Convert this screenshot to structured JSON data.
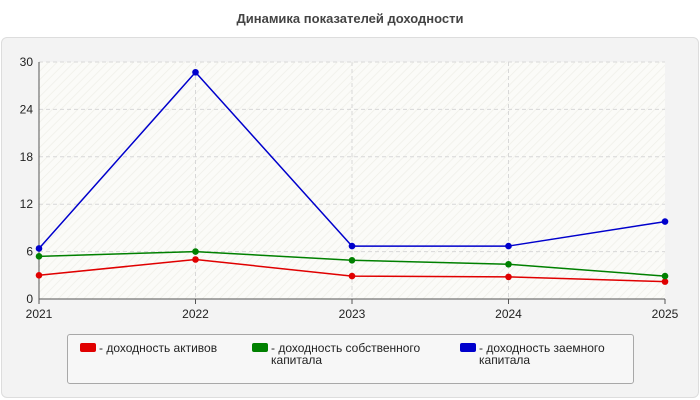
{
  "chart_data": {
    "type": "line",
    "title": "Динамика показателей доходности",
    "x": [
      "2021",
      "2022",
      "2023",
      "2024",
      "2025"
    ],
    "ylim": [
      0,
      30
    ],
    "yticks": [
      0,
      6,
      12,
      18,
      24,
      30
    ],
    "grid": true,
    "legend_position": "bottom",
    "series": [
      {
        "name": "- доходность активов",
        "color": "#e00000",
        "values": [
          3.0,
          5.0,
          2.9,
          2.8,
          2.2
        ]
      },
      {
        "name": "- доходность собственного капитала",
        "color": "#008000",
        "values": [
          5.4,
          6.0,
          4.9,
          4.4,
          2.9
        ]
      },
      {
        "name": "- доходность заемного капитала",
        "color": "#0000cc",
        "values": [
          6.4,
          28.7,
          6.7,
          6.7,
          9.8
        ]
      }
    ]
  }
}
